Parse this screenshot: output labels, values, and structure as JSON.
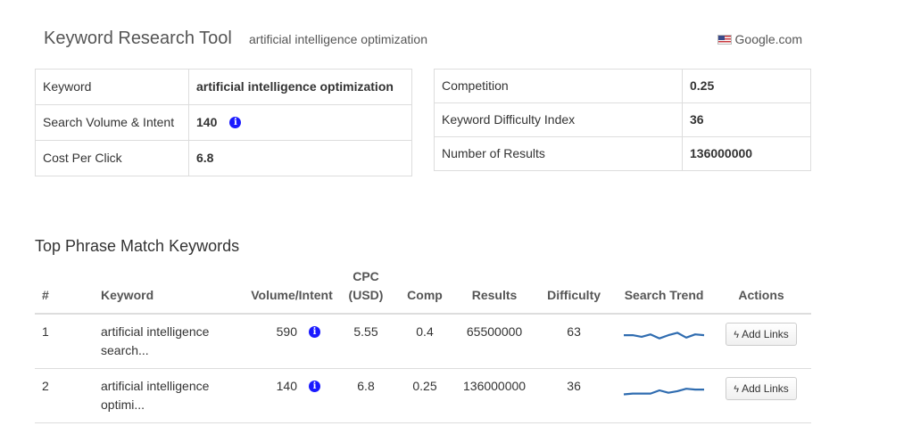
{
  "header": {
    "title": "Keyword Research Tool",
    "query": "artificial intelligence optimization",
    "engine": "Google.com",
    "engine_flag": "us-flag-icon"
  },
  "summary_left": {
    "keyword_label": "Keyword",
    "keyword_value": "artificial intelligence optimization",
    "volume_label": "Search Volume & Intent",
    "volume_value": "140",
    "volume_icon": "info-icon",
    "cpc_label": "Cost Per Click",
    "cpc_value": "6.8"
  },
  "summary_right": {
    "competition_label": "Competition",
    "competition_value": "0.25",
    "difficulty_label": "Keyword Difficulty Index",
    "difficulty_value": "36",
    "results_label": "Number of Results",
    "results_value": "136000000"
  },
  "phrase_section": {
    "title": "Top Phrase Match Keywords",
    "columns": {
      "num": "#",
      "keyword": "Keyword",
      "volume": "Volume/Intent",
      "cpc": "CPC (USD)",
      "comp": "Comp",
      "results": "Results",
      "difficulty": "Difficulty",
      "trend": "Search Trend",
      "actions": "Actions"
    },
    "rows": [
      {
        "num": "1",
        "keyword": "artificial intelligence search...",
        "volume": "590",
        "cpc": "5.55",
        "comp": "0.4",
        "results": "65500000",
        "difficulty": "63",
        "trend": [
          0.55,
          0.55,
          0.45,
          0.6,
          0.35,
          0.55,
          0.7,
          0.4,
          0.6,
          0.55
        ],
        "action": "Add Links"
      },
      {
        "num": "2",
        "keyword": "artificial intelligence optimi...",
        "volume": "140",
        "cpc": "6.8",
        "comp": "0.25",
        "results": "136000000",
        "difficulty": "36",
        "trend": [
          0.25,
          0.3,
          0.3,
          0.3,
          0.5,
          0.35,
          0.45,
          0.6,
          0.55,
          0.55
        ],
        "action": "Add Links"
      }
    ]
  },
  "colors": {
    "trend_line": "#2f6cb0",
    "info_icon": "#1a1aff"
  }
}
